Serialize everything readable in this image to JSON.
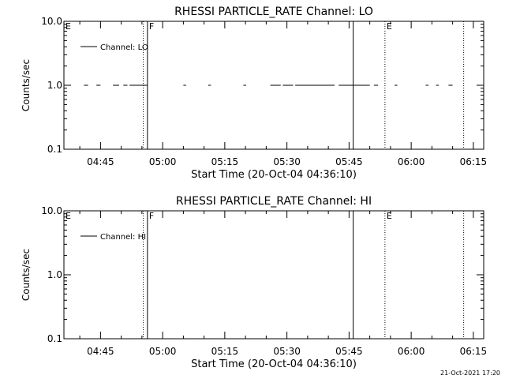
{
  "footer_timestamp": "21-Oct-2021 17:20",
  "chart_data": [
    {
      "type": "line",
      "title": "RHESSI PARTICLE_RATE Channel: LO",
      "xlabel": "Start Time (20-Oct-04 04:36:10)",
      "ylabel": "Counts/sec",
      "yscale": "log",
      "ylim": [
        0.1,
        10.0
      ],
      "yticks": [
        {
          "value": 0.1,
          "label": "0.1"
        },
        {
          "value": 1.0,
          "label": "1.0"
        },
        {
          "value": 10.0,
          "label": "10.0"
        }
      ],
      "xlim": [
        "04:36:10",
        "06:17:30"
      ],
      "xticks": [
        "04:45",
        "05:00",
        "05:15",
        "05:30",
        "05:45",
        "06:00",
        "06:15"
      ],
      "legend": {
        "placement": "top-left",
        "entries": [
          "Channel: LO"
        ]
      },
      "series": [
        {
          "name": "Channel: LO",
          "segments": [
            [
              "04:41:00",
              "04:42:00"
            ],
            [
              "04:44:00",
              "04:45:00"
            ],
            [
              "04:48:00",
              "04:49:30"
            ],
            [
              "04:50:30",
              "04:51:30"
            ],
            [
              "04:52:00",
              "04:56:20"
            ],
            [
              "05:05:00",
              "05:05:40"
            ],
            [
              "05:11:00",
              "05:11:40"
            ],
            [
              "05:19:30",
              "05:20:10"
            ],
            [
              "05:26:00",
              "05:28:30"
            ],
            [
              "05:29:00",
              "05:31:30"
            ],
            [
              "05:32:00",
              "05:41:30"
            ],
            [
              "05:42:30",
              "05:50:00"
            ],
            [
              "05:51:00",
              "05:52:00"
            ],
            [
              "05:56:00",
              "05:56:40"
            ],
            [
              "06:03:30",
              "06:04:10"
            ],
            [
              "06:06:00",
              "06:06:40"
            ],
            [
              "06:09:00",
              "06:10:00"
            ]
          ],
          "value": 1.0
        }
      ],
      "annotations": [
        {
          "time": "04:36:10",
          "style": "none",
          "label": "E"
        },
        {
          "time": "04:55:20",
          "style": "dotted",
          "label": ""
        },
        {
          "time": "04:56:20",
          "style": "solid",
          "label": "F"
        },
        {
          "time": "05:46:00",
          "style": "solid",
          "label": ""
        },
        {
          "time": "05:53:40",
          "style": "dotted",
          "label": "E"
        },
        {
          "time": "06:12:40",
          "style": "dotted",
          "label": ""
        }
      ]
    },
    {
      "type": "line",
      "title": "RHESSI PARTICLE_RATE Channel: HI",
      "xlabel": "Start Time (20-Oct-04 04:36:10)",
      "ylabel": "Counts/sec",
      "yscale": "log",
      "ylim": [
        0.1,
        10.0
      ],
      "yticks": [
        {
          "value": 0.1,
          "label": "0.1"
        },
        {
          "value": 1.0,
          "label": "1.0"
        },
        {
          "value": 10.0,
          "label": "10.0"
        }
      ],
      "xlim": [
        "04:36:10",
        "06:17:30"
      ],
      "xticks": [
        "04:45",
        "05:00",
        "05:15",
        "05:30",
        "05:45",
        "06:00",
        "06:15"
      ],
      "legend": {
        "placement": "top-left",
        "entries": [
          "Channel: HI"
        ]
      },
      "series": [
        {
          "name": "Channel: HI",
          "segments": [],
          "value": null
        }
      ],
      "annotations": [
        {
          "time": "04:36:10",
          "style": "none",
          "label": "E"
        },
        {
          "time": "04:55:20",
          "style": "dotted",
          "label": ""
        },
        {
          "time": "04:56:20",
          "style": "solid",
          "label": "F"
        },
        {
          "time": "05:46:00",
          "style": "solid",
          "label": ""
        },
        {
          "time": "05:53:40",
          "style": "dotted",
          "label": "E"
        },
        {
          "time": "06:12:40",
          "style": "dotted",
          "label": ""
        }
      ]
    }
  ]
}
